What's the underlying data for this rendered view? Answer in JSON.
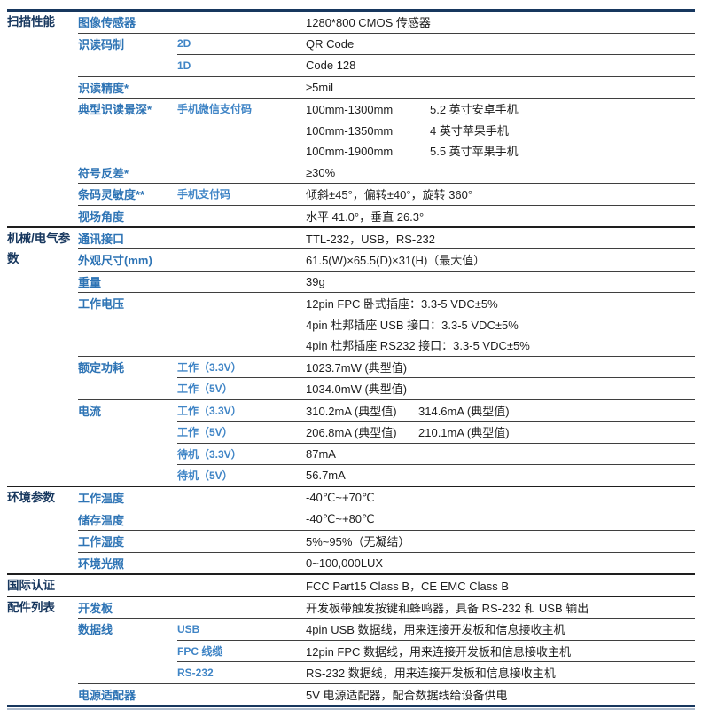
{
  "colors": {
    "navy": "#17375e",
    "param_blue": "#2e74b5",
    "sub_blue": "#4085c6",
    "value_text": "#1d1d1d"
  },
  "table": {
    "sections": [
      {
        "category": "扫描性能",
        "rows": [
          {
            "param": "图像传感器",
            "value": "1280*800 CMOS 传感器"
          },
          {
            "param": "识读码制",
            "sub": "2D",
            "value": "QR Code"
          },
          {
            "sub": "1D",
            "value": "Code 128"
          },
          {
            "param": "识读精度*",
            "value": "≥5mil"
          },
          {
            "param": "典型识读景深*",
            "sub": "手机微信支付码",
            "value": "100mm-1300mm",
            "value2": "5.2 英寸安卓手机"
          },
          {
            "value": "100mm-1350mm",
            "value2": "4 英寸苹果手机"
          },
          {
            "value": "100mm-1900mm",
            "value2": "5.5 英寸苹果手机"
          },
          {
            "param": "符号反差*",
            "value": "≥30%"
          },
          {
            "param": "条码灵敏度**",
            "sub": "手机支付码",
            "value": "倾斜±45°，偏转±40°，旋转 360°"
          },
          {
            "param": "视场角度",
            "value": "水平 41.0°，垂直 26.3°"
          }
        ]
      },
      {
        "category": "机械/电气参数",
        "rows": [
          {
            "param": "通讯接口",
            "value": "TTL-232，USB，RS-232"
          },
          {
            "param": "外观尺寸(mm)",
            "value": "61.5(W)×65.5(D)×31(H)（最大值）"
          },
          {
            "param": "重量",
            "value": "39g"
          },
          {
            "param": "工作电压",
            "value": "12pin FPC 卧式插座：3.3-5 VDC±5%"
          },
          {
            "value": "4pin 杜邦插座 USB 接口：3.3-5 VDC±5%"
          },
          {
            "value": "4pin 杜邦插座 RS232 接口：3.3-5 VDC±5%"
          },
          {
            "param": "额定功耗",
            "sub": "工作（3.3V）",
            "value": "1023.7mW (典型值)"
          },
          {
            "sub": "工作（5V）",
            "value": "1034.0mW (典型值)"
          },
          {
            "param": "电流",
            "sub": "工作（3.3V）",
            "value": "310.2mA (典型值)",
            "value2": "314.6mA (典型值)"
          },
          {
            "sub": "工作（5V）",
            "value": "206.8mA (典型值)",
            "value2": "210.1mA (典型值)"
          },
          {
            "sub": "待机（3.3V）",
            "value": "87mA"
          },
          {
            "sub": "待机（5V）",
            "value": "56.7mA"
          }
        ]
      },
      {
        "category": "环境参数",
        "rows": [
          {
            "param": "工作温度",
            "value": "-40℃~+70℃"
          },
          {
            "param": "储存温度",
            "value": "-40℃~+80℃"
          },
          {
            "param": "工作湿度",
            "value": "5%~95%（无凝结）"
          },
          {
            "param": "环境光照",
            "value": "0~100,000LUX"
          }
        ]
      },
      {
        "category": "国际认证",
        "rows": [
          {
            "value": "FCC Part15 Class B，CE EMC Class B"
          }
        ]
      },
      {
        "category": "配件列表",
        "rows": [
          {
            "param": "开发板",
            "value": "开发板带触发按键和蜂鸣器，具备 RS-232 和 USB 输出"
          },
          {
            "param": "数据线",
            "sub": "USB",
            "value": "4pin USB 数据线，用来连接开发板和信息接收主机"
          },
          {
            "sub": "FPC 线缆",
            "value": "12pin FPC 数据线，用来连接开发板和信息接收主机"
          },
          {
            "sub": "RS-232",
            "value": "RS-232 数据线，用来连接开发板和信息接收主机"
          },
          {
            "param": "电源适配器",
            "value": "5V 电源适配器，配合数据线给设备供电"
          }
        ]
      }
    ]
  }
}
